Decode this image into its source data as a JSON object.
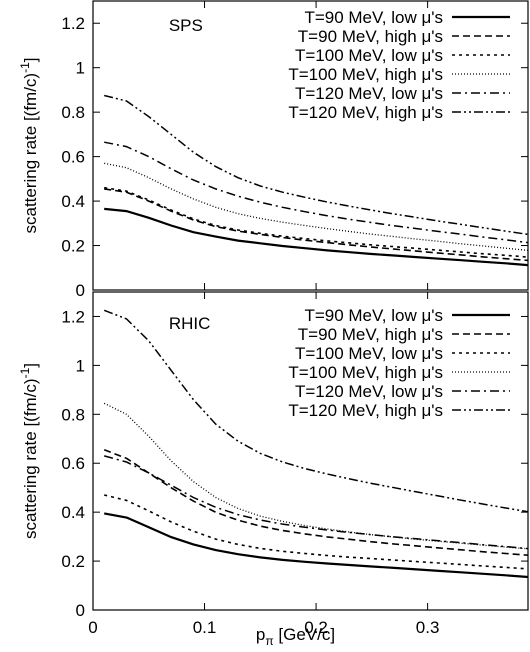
{
  "chart_data": [
    {
      "type": "line",
      "panel_label": "SPS",
      "xlim": [
        0,
        0.39
      ],
      "ylim": [
        0,
        1.3
      ],
      "y_ticks": [
        {
          "v": 0,
          "label": "0"
        },
        {
          "v": 0.2,
          "label": "0.2"
        },
        {
          "v": 0.4,
          "label": "0.4"
        },
        {
          "v": 0.6,
          "label": "0.6"
        },
        {
          "v": 0.8,
          "label": "0.8"
        },
        {
          "v": 1.0,
          "label": "1"
        },
        {
          "v": 1.2,
          "label": "1.2"
        }
      ],
      "ylabel_main": "scattering rate [(fm/c)",
      "ylabel_sup": "-1",
      "ylabel_end": "]",
      "legend_placement": "top-right",
      "x": [
        0.01,
        0.03,
        0.05,
        0.07,
        0.09,
        0.11,
        0.13,
        0.15,
        0.17,
        0.19,
        0.21,
        0.23,
        0.25,
        0.27,
        0.29,
        0.31,
        0.33,
        0.35,
        0.37,
        0.39
      ],
      "series": [
        {
          "name": "T=90 MeV, low μ's",
          "style": "solid",
          "values": [
            0.365,
            0.355,
            0.325,
            0.29,
            0.26,
            0.24,
            0.222,
            0.21,
            0.198,
            0.188,
            0.178,
            0.17,
            0.162,
            0.155,
            0.148,
            0.141,
            0.134,
            0.127,
            0.12,
            0.112
          ]
        },
        {
          "name": "T=90 MeV, high μ's",
          "style": "dashed",
          "values": [
            0.455,
            0.44,
            0.4,
            0.355,
            0.315,
            0.285,
            0.265,
            0.25,
            0.236,
            0.224,
            0.213,
            0.203,
            0.193,
            0.184,
            0.175,
            0.166,
            0.158,
            0.149,
            0.141,
            0.133
          ]
        },
        {
          "name": "T=100 MeV, low μ's",
          "style": "dotted",
          "values": [
            0.46,
            0.445,
            0.405,
            0.36,
            0.32,
            0.29,
            0.27,
            0.255,
            0.242,
            0.231,
            0.221,
            0.212,
            0.203,
            0.195,
            0.187,
            0.179,
            0.171,
            0.163,
            0.156,
            0.148
          ]
        },
        {
          "name": "T=100 MeV, high μ's",
          "style": "finedot",
          "values": [
            0.57,
            0.55,
            0.505,
            0.455,
            0.41,
            0.372,
            0.343,
            0.322,
            0.305,
            0.29,
            0.276,
            0.263,
            0.251,
            0.24,
            0.229,
            0.219,
            0.208,
            0.198,
            0.188,
            0.178
          ]
        },
        {
          "name": "T=120 MeV, low μ's",
          "style": "dashdot",
          "values": [
            0.665,
            0.645,
            0.6,
            0.545,
            0.495,
            0.455,
            0.422,
            0.395,
            0.372,
            0.352,
            0.334,
            0.318,
            0.303,
            0.289,
            0.276,
            0.263,
            0.251,
            0.238,
            0.226,
            0.213
          ]
        },
        {
          "name": "T=120 MeV, high μ's",
          "style": "dashdotdot",
          "values": [
            0.875,
            0.85,
            0.78,
            0.7,
            0.62,
            0.555,
            0.505,
            0.468,
            0.44,
            0.417,
            0.396,
            0.377,
            0.359,
            0.342,
            0.326,
            0.31,
            0.295,
            0.28,
            0.265,
            0.25
          ]
        }
      ]
    },
    {
      "type": "line",
      "panel_label": "RHIC",
      "xlim": [
        0,
        0.39
      ],
      "ylim": [
        0,
        1.3
      ],
      "y_ticks": [
        {
          "v": 0,
          "label": "0"
        },
        {
          "v": 0.2,
          "label": "0.2"
        },
        {
          "v": 0.4,
          "label": "0.4"
        },
        {
          "v": 0.6,
          "label": "0.6"
        },
        {
          "v": 0.8,
          "label": "0.8"
        },
        {
          "v": 1.0,
          "label": "1"
        },
        {
          "v": 1.2,
          "label": "1.2"
        }
      ],
      "x_ticks": [
        {
          "v": 0,
          "label": "0"
        },
        {
          "v": 0.1,
          "label": "0.1"
        },
        {
          "v": 0.2,
          "label": "0.2"
        },
        {
          "v": 0.3,
          "label": "0.3"
        }
      ],
      "ylabel_main": "scattering rate [(fm/c)",
      "ylabel_sup": "-1",
      "ylabel_end": "]",
      "xlabel_main": "p",
      "xlabel_sub": "π",
      "xlabel_end": " [GeV/c]",
      "legend_placement": "top-right",
      "x": [
        0.01,
        0.03,
        0.05,
        0.07,
        0.09,
        0.11,
        0.13,
        0.15,
        0.17,
        0.19,
        0.21,
        0.23,
        0.25,
        0.27,
        0.29,
        0.31,
        0.33,
        0.35,
        0.37,
        0.39
      ],
      "series": [
        {
          "name": "T=90 MeV, low μ's",
          "style": "solid",
          "values": [
            0.395,
            0.378,
            0.338,
            0.298,
            0.268,
            0.245,
            0.228,
            0.215,
            0.205,
            0.197,
            0.19,
            0.184,
            0.178,
            0.172,
            0.166,
            0.16,
            0.154,
            0.148,
            0.142,
            0.135
          ]
        },
        {
          "name": "T=90 MeV, high μ's",
          "style": "dashed",
          "values": [
            0.655,
            0.62,
            0.56,
            0.5,
            0.445,
            0.4,
            0.367,
            0.343,
            0.325,
            0.311,
            0.299,
            0.289,
            0.279,
            0.27,
            0.262,
            0.254,
            0.246,
            0.238,
            0.231,
            0.224
          ]
        },
        {
          "name": "T=100 MeV, low μ's",
          "style": "dotted",
          "values": [
            0.47,
            0.448,
            0.405,
            0.36,
            0.322,
            0.29,
            0.268,
            0.252,
            0.24,
            0.231,
            0.223,
            0.216,
            0.21,
            0.204,
            0.198,
            0.192,
            0.186,
            0.18,
            0.174,
            0.168
          ]
        },
        {
          "name": "T=100 MeV, high μ's",
          "style": "finedot",
          "values": [
            0.845,
            0.8,
            0.71,
            0.61,
            0.525,
            0.46,
            0.415,
            0.384,
            0.362,
            0.345,
            0.331,
            0.319,
            0.308,
            0.298,
            0.289,
            0.281,
            0.273,
            0.265,
            0.257,
            0.25
          ]
        },
        {
          "name": "T=120 MeV, low μ's",
          "style": "dashdot",
          "values": [
            0.63,
            0.605,
            0.56,
            0.51,
            0.46,
            0.42,
            0.39,
            0.368,
            0.351,
            0.338,
            0.327,
            0.317,
            0.308,
            0.299,
            0.291,
            0.283,
            0.275,
            0.267,
            0.259,
            0.251
          ]
        },
        {
          "name": "T=120 MeV, high μ's",
          "style": "dashdotdot",
          "values": [
            1.225,
            1.19,
            1.1,
            0.98,
            0.86,
            0.76,
            0.69,
            0.64,
            0.605,
            0.578,
            0.556,
            0.536,
            0.517,
            0.5,
            0.483,
            0.466,
            0.449,
            0.433,
            0.417,
            0.402
          ]
        }
      ]
    }
  ]
}
